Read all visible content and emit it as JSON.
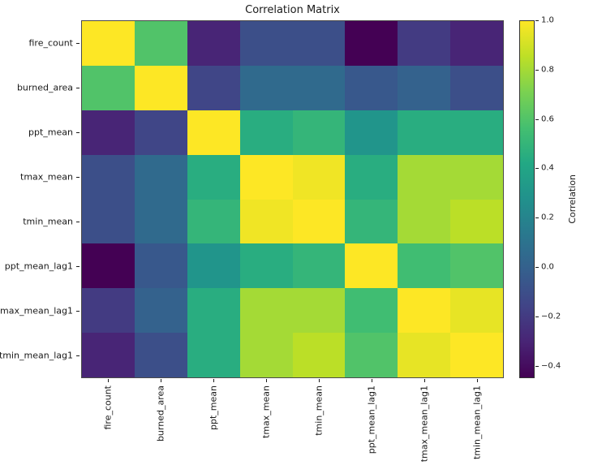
{
  "chart_data": {
    "type": "heatmap",
    "title": "Correlation Matrix",
    "colormap": "viridis",
    "vmin": -0.45,
    "vmax": 1.0,
    "labels": [
      "fire_count",
      "burned_area",
      "ppt_mean",
      "tmax_mean",
      "tmin_mean",
      "ppt_mean_lag1",
      "tmax_mean_lag1",
      "tmin_mean_lag1"
    ],
    "matrix": [
      [
        1.0,
        0.6,
        -0.3,
        -0.1,
        -0.1,
        -0.45,
        -0.2,
        -0.3
      ],
      [
        0.6,
        1.0,
        -0.15,
        0.05,
        0.05,
        -0.05,
        0.0,
        -0.1
      ],
      [
        -0.3,
        -0.15,
        1.0,
        0.45,
        0.5,
        0.3,
        0.45,
        0.45
      ],
      [
        -0.1,
        0.05,
        0.45,
        1.0,
        0.97,
        0.45,
        0.8,
        0.8
      ],
      [
        -0.1,
        0.05,
        0.5,
        0.97,
        1.0,
        0.5,
        0.8,
        0.85
      ],
      [
        -0.45,
        -0.05,
        0.3,
        0.45,
        0.5,
        1.0,
        0.55,
        0.6
      ],
      [
        -0.2,
        0.0,
        0.45,
        0.8,
        0.8,
        0.55,
        1.0,
        0.95
      ],
      [
        -0.3,
        -0.1,
        0.45,
        0.8,
        0.85,
        0.6,
        0.95,
        1.0
      ]
    ],
    "colorbar": {
      "label": "Correlation",
      "ticks": [
        1.0,
        0.8,
        0.6,
        0.4,
        0.2,
        0.0,
        -0.2,
        -0.4
      ]
    },
    "legend_position": "right",
    "grid": false
  }
}
